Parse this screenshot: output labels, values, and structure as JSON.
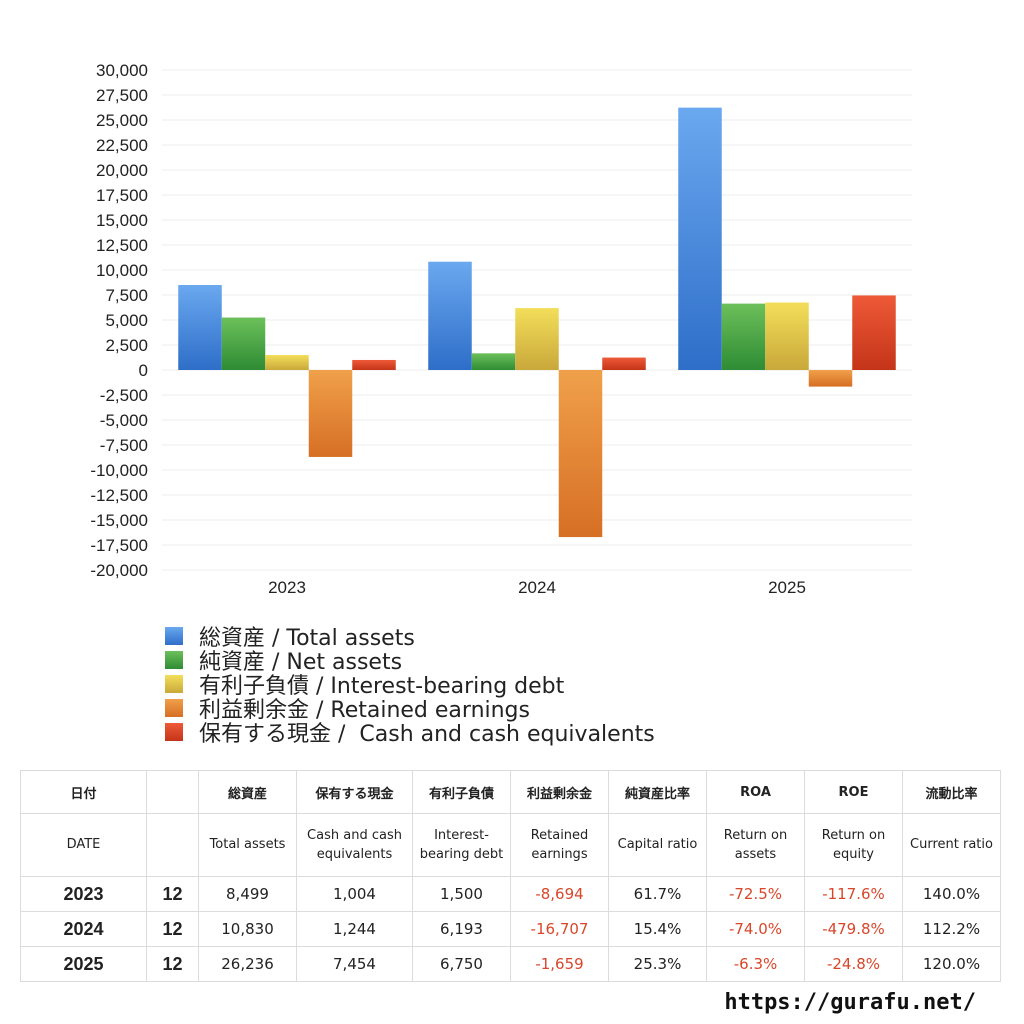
{
  "chart_data": {
    "type": "bar",
    "categories": [
      "2023",
      "2024",
      "2025"
    ],
    "ylim": [
      -20000,
      30000
    ],
    "y_ticks": [
      "30,000",
      "27,500",
      "25,000",
      "22,500",
      "20,000",
      "17,500",
      "15,000",
      "12,500",
      "10,000",
      "7,500",
      "5,000",
      "2,500",
      "0",
      "-2,500",
      "-5,000",
      "-7,500",
      "-10,000",
      "-12,500",
      "-15,000",
      "-17,500",
      "-20,000"
    ],
    "grid": true,
    "legend_position": "bottom-left",
    "series": [
      {
        "name": "総資産 / Total assets",
        "values": [
          8499,
          10830,
          26236
        ],
        "color_top": "#6aa8ef",
        "color_bottom": "#2e6ec8"
      },
      {
        "name": "純資産 / Net assets",
        "values": [
          5245,
          1669,
          6639
        ],
        "color_top": "#6cc05a",
        "color_bottom": "#2e8c34"
      },
      {
        "name": "有利子負債 / Interest-bearing debt",
        "values": [
          1500,
          6193,
          6750
        ],
        "color_top": "#f3de5a",
        "color_bottom": "#c9a83a"
      },
      {
        "name": "利益剰余金 / Retained earnings",
        "values": [
          -8694,
          -16707,
          -1659
        ],
        "color_top": "#f0a04a",
        "color_bottom": "#d66f24"
      },
      {
        "name": "保有する現金 /  Cash and cash equivalents",
        "values": [
          1004,
          1244,
          7454
        ],
        "color_top": "#ee5a38",
        "color_bottom": "#c43418"
      }
    ]
  },
  "table": {
    "headers_ja": [
      "日付",
      "",
      "総資産",
      "保有する現金",
      "有利子負債",
      "利益剰余金",
      "純資産比率",
      "ROA",
      "ROE",
      "流動比率"
    ],
    "headers_en": [
      "DATE",
      "",
      "Total assets",
      "Cash and cash equivalents",
      "Interest-bearing debt",
      "Retained earnings",
      "Capital ratio",
      "Return on assets",
      "Return on equity",
      "Current ratio"
    ],
    "rows": [
      {
        "year": "2023",
        "month": "12",
        "total_assets": "8,499",
        "cash": "1,004",
        "debt": "1,500",
        "retained": "-8,694",
        "capital_ratio": "61.7%",
        "roa": "-72.5%",
        "roe": "-117.6%",
        "current_ratio": "140.0%"
      },
      {
        "year": "2024",
        "month": "12",
        "total_assets": "10,830",
        "cash": "1,244",
        "debt": "6,193",
        "retained": "-16,707",
        "capital_ratio": "15.4%",
        "roa": "-74.0%",
        "roe": "-479.8%",
        "current_ratio": "112.2%"
      },
      {
        "year": "2025",
        "month": "12",
        "total_assets": "26,236",
        "cash": "7,454",
        "debt": "6,750",
        "retained": "-1,659",
        "capital_ratio": "25.3%",
        "roa": "-6.3%",
        "roe": "-24.8%",
        "current_ratio": "120.0%"
      }
    ],
    "negative_color": "#d9462a"
  },
  "footer": {
    "url": "https://gurafu.net/"
  }
}
